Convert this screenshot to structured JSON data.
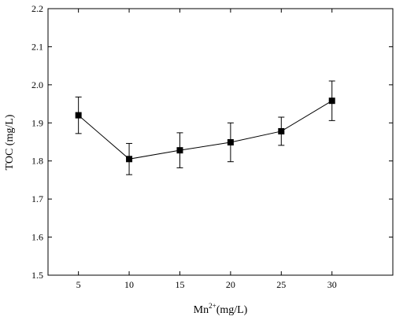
{
  "chart_data": {
    "type": "line",
    "xlabel_base": "Mn",
    "xlabel_sup": "2+",
    "xlabel_rest": "(mg/L)",
    "ylabel": "TOC (mg/L)",
    "xlim": [
      2,
      36
    ],
    "ylim": [
      1.5,
      2.2
    ],
    "x_ticks": [
      "5",
      "10",
      "15",
      "20",
      "25",
      "30"
    ],
    "y_ticks": [
      "1.5",
      "1.6",
      "1.7",
      "1.8",
      "1.9",
      "2.0",
      "2.1",
      "2.2"
    ],
    "series": [
      {
        "x": [
          5,
          10,
          15,
          20,
          25,
          30
        ],
        "y": [
          1.92,
          1.805,
          1.828,
          1.849,
          1.878,
          1.958
        ],
        "error": [
          0.048,
          0.041,
          0.046,
          0.051,
          0.037,
          0.052
        ],
        "marker": "square",
        "color": "#000000"
      }
    ],
    "grid": false,
    "legend": false
  }
}
